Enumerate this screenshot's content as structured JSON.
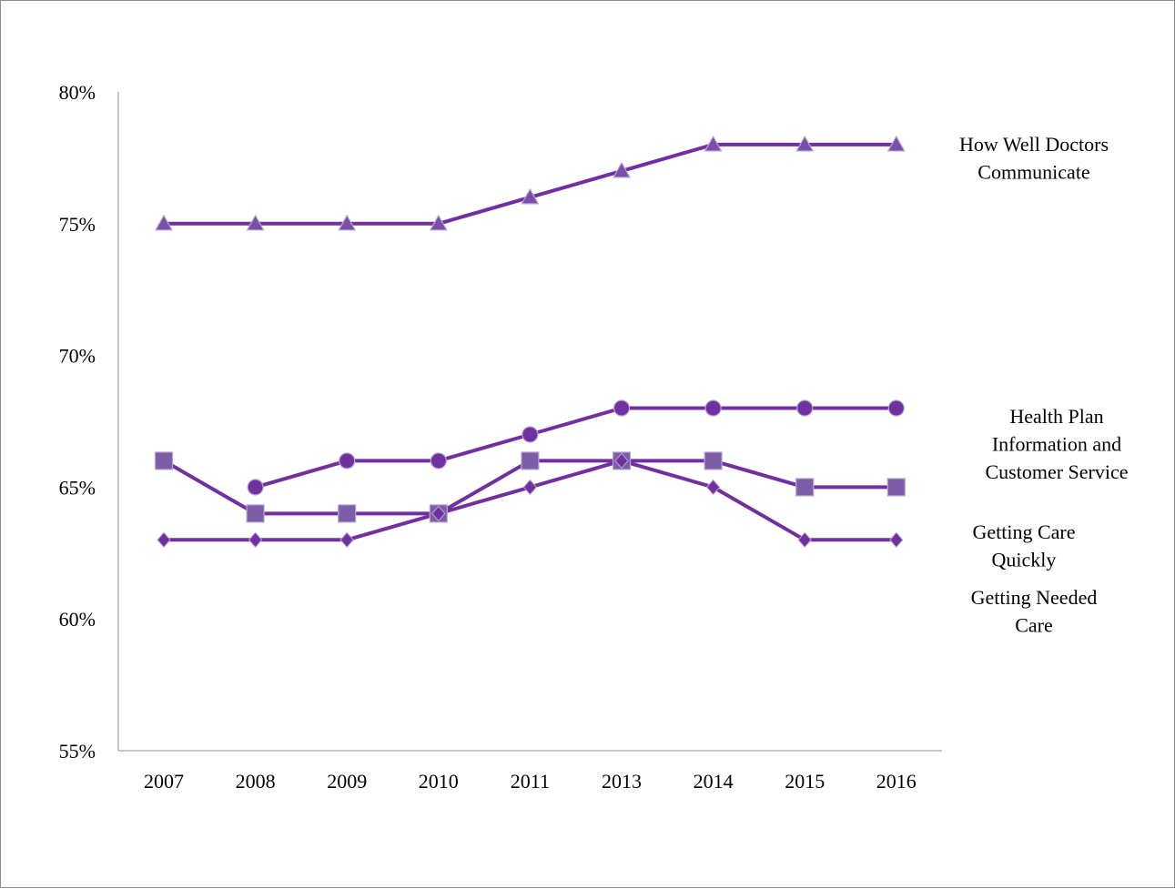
{
  "chart_data": {
    "type": "line",
    "title": "",
    "xlabel": "",
    "ylabel": "",
    "categories": [
      "2007",
      "2008",
      "2009",
      "2010",
      "2011",
      "2013",
      "2014",
      "2015",
      "2016"
    ],
    "ylim": [
      55,
      80
    ],
    "yticks": [
      55,
      60,
      65,
      70,
      75,
      80
    ],
    "ytick_labels": [
      "55%",
      "60%",
      "65%",
      "70%",
      "75%",
      "80%"
    ],
    "grid": false,
    "legend": "series labels at right end of lines",
    "line_color": "#7030a0",
    "series": [
      {
        "name": "How Well Doctors Communicate",
        "label_lines": [
          "How Well Doctors",
          "Communicate"
        ],
        "marker": "triangle",
        "values": [
          75,
          75,
          75,
          75,
          76,
          77,
          78,
          78,
          78
        ]
      },
      {
        "name": "Health Plan Information and Customer Service",
        "label_lines": [
          "Health Plan",
          "Information and",
          "Customer Service"
        ],
        "marker": "circle",
        "values": [
          null,
          65,
          66,
          66,
          67,
          68,
          68,
          68,
          68
        ]
      },
      {
        "name": "Getting Care Quickly",
        "label_lines": [
          "Getting Care",
          "Quickly"
        ],
        "marker": "square",
        "values": [
          66,
          64,
          64,
          64,
          66,
          66,
          66,
          65,
          65
        ]
      },
      {
        "name": "Getting Needed Care",
        "label_lines": [
          "Getting Needed",
          "Care"
        ],
        "marker": "diamond",
        "values": [
          63,
          63,
          63,
          64,
          65,
          66,
          65,
          63,
          63
        ]
      }
    ]
  }
}
